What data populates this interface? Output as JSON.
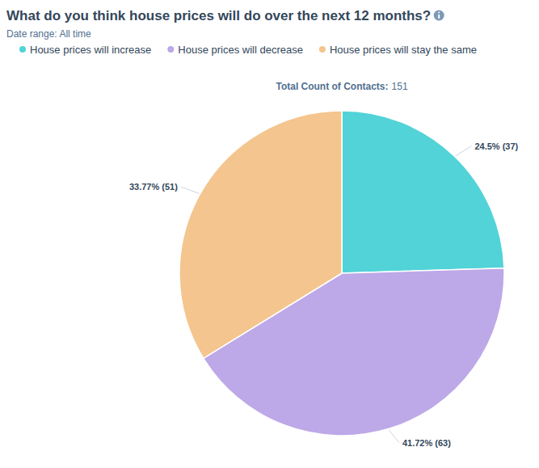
{
  "chart_data": {
    "type": "pie",
    "title": "What do you think house prices will do over the next 12 months?",
    "subtitle": "Date range: All time",
    "categories": [
      "House prices will increase",
      "House prices will decrease",
      "House prices will stay the same"
    ],
    "values": [
      37,
      63,
      51
    ],
    "value_labels": [
      "24.5% (37)",
      "41.72% (63)",
      "33.77% (51)"
    ],
    "colors": [
      "#52d3d8",
      "#bda8e8",
      "#f4c58e"
    ],
    "data_labels": true,
    "legend": "top",
    "annotations": [
      {
        "text": "Total Count of Contacts:",
        "value": 151
      }
    ]
  }
}
